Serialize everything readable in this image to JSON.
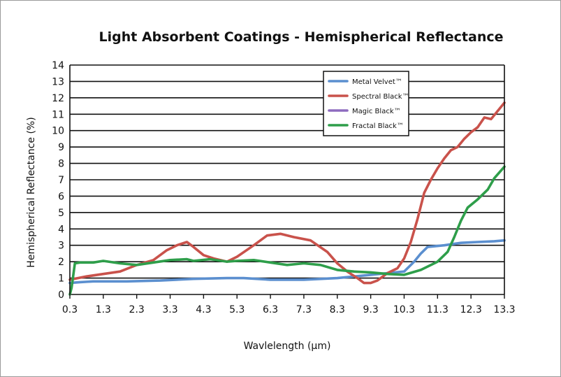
{
  "chart_data": {
    "type": "line",
    "title": "Light Absorbent Coatings - Hemispherical Reflectance",
    "xlabel": "Wavlelength (μm)",
    "ylabel": "Hemispherical Reflectance (%)",
    "xlim": [
      0.3,
      13.3
    ],
    "ylim": [
      0,
      14
    ],
    "x_ticks": [
      "0.3",
      "1.3",
      "2.3",
      "3.3",
      "4.3",
      "5.3",
      "6.3",
      "7.3",
      "8.3",
      "9.3",
      "10.3",
      "11.3",
      "12.3",
      "13.3"
    ],
    "y_ticks": [
      "0",
      "1",
      "2",
      "3",
      "4",
      "5",
      "6",
      "7",
      "8",
      "9",
      "10",
      "11",
      "12",
      "13",
      "14"
    ],
    "grid": "horizontal",
    "legend_position": "top-right",
    "series": [
      {
        "name": "Metal Velvet™",
        "color": "#5b8fcf",
        "points": [
          [
            0.3,
            0.7
          ],
          [
            0.6,
            0.75
          ],
          [
            1.0,
            0.8
          ],
          [
            1.5,
            0.8
          ],
          [
            2.0,
            0.8
          ],
          [
            3.0,
            0.85
          ],
          [
            4.0,
            0.95
          ],
          [
            5.0,
            1.0
          ],
          [
            5.5,
            1.0
          ],
          [
            6.3,
            0.9
          ],
          [
            7.3,
            0.9
          ],
          [
            8.3,
            1.0
          ],
          [
            9.3,
            1.2
          ],
          [
            9.8,
            1.3
          ],
          [
            10.3,
            1.4
          ],
          [
            10.6,
            2.0
          ],
          [
            10.8,
            2.5
          ],
          [
            11.0,
            2.9
          ],
          [
            11.5,
            3.0
          ],
          [
            12.0,
            3.15
          ],
          [
            12.5,
            3.2
          ],
          [
            13.0,
            3.25
          ],
          [
            13.3,
            3.3
          ]
        ]
      },
      {
        "name": "Spectral Black™",
        "color": "#c9524b",
        "points": [
          [
            0.3,
            0.9
          ],
          [
            0.8,
            1.1
          ],
          [
            1.3,
            1.25
          ],
          [
            1.8,
            1.4
          ],
          [
            2.3,
            1.8
          ],
          [
            2.8,
            2.1
          ],
          [
            3.2,
            2.7
          ],
          [
            3.5,
            3.0
          ],
          [
            3.8,
            3.2
          ],
          [
            4.0,
            2.9
          ],
          [
            4.3,
            2.4
          ],
          [
            4.6,
            2.2
          ],
          [
            5.0,
            2.0
          ],
          [
            5.3,
            2.3
          ],
          [
            5.8,
            3.0
          ],
          [
            6.2,
            3.6
          ],
          [
            6.6,
            3.7
          ],
          [
            7.0,
            3.5
          ],
          [
            7.5,
            3.3
          ],
          [
            8.0,
            2.6
          ],
          [
            8.3,
            1.9
          ],
          [
            8.6,
            1.4
          ],
          [
            8.9,
            1.0
          ],
          [
            9.1,
            0.7
          ],
          [
            9.3,
            0.7
          ],
          [
            9.5,
            0.85
          ],
          [
            9.8,
            1.3
          ],
          [
            10.1,
            1.6
          ],
          [
            10.3,
            2.2
          ],
          [
            10.5,
            3.2
          ],
          [
            10.7,
            4.6
          ],
          [
            10.9,
            6.2
          ],
          [
            11.1,
            7.0
          ],
          [
            11.3,
            7.7
          ],
          [
            11.5,
            8.3
          ],
          [
            11.7,
            8.8
          ],
          [
            11.9,
            9.0
          ],
          [
            12.1,
            9.5
          ],
          [
            12.3,
            9.9
          ],
          [
            12.5,
            10.2
          ],
          [
            12.7,
            10.8
          ],
          [
            12.9,
            10.7
          ],
          [
            13.1,
            11.2
          ],
          [
            13.3,
            11.7
          ]
        ]
      },
      {
        "name": "Magic Black™",
        "color": "#8e6bbf",
        "points": []
      },
      {
        "name": "Fractal Black™",
        "color": "#2e9e4a",
        "points": [
          [
            0.3,
            0.0
          ],
          [
            0.35,
            0.4
          ],
          [
            0.45,
            1.9
          ],
          [
            0.6,
            1.95
          ],
          [
            1.0,
            1.95
          ],
          [
            1.3,
            2.05
          ],
          [
            1.8,
            1.9
          ],
          [
            2.3,
            1.8
          ],
          [
            2.8,
            1.95
          ],
          [
            3.3,
            2.1
          ],
          [
            3.8,
            2.15
          ],
          [
            4.0,
            2.05
          ],
          [
            4.5,
            2.15
          ],
          [
            5.0,
            2.0
          ],
          [
            5.3,
            2.05
          ],
          [
            5.8,
            2.1
          ],
          [
            6.3,
            1.95
          ],
          [
            6.8,
            1.8
          ],
          [
            7.3,
            1.9
          ],
          [
            7.8,
            1.8
          ],
          [
            8.3,
            1.5
          ],
          [
            8.8,
            1.4
          ],
          [
            9.3,
            1.35
          ],
          [
            9.8,
            1.25
          ],
          [
            10.3,
            1.2
          ],
          [
            10.8,
            1.5
          ],
          [
            11.3,
            2.0
          ],
          [
            11.6,
            2.6
          ],
          [
            11.8,
            3.5
          ],
          [
            12.0,
            4.5
          ],
          [
            12.2,
            5.3
          ],
          [
            12.5,
            5.8
          ],
          [
            12.8,
            6.4
          ],
          [
            13.0,
            7.1
          ],
          [
            13.3,
            7.8
          ]
        ]
      }
    ]
  }
}
